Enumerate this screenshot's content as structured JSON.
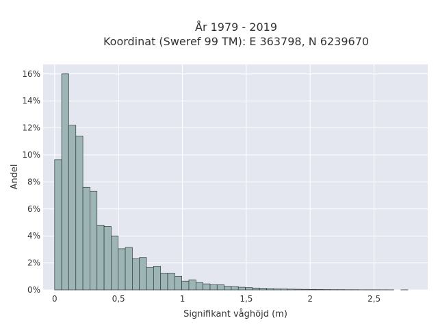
{
  "chart_data": {
    "type": "bar",
    "title_line1": "År 1979 - 2019",
    "title_line2": "Koordinat (Sweref 99 TM): E 363798, N 6239670",
    "xlabel": "Signifikant våghöjd (m)",
    "ylabel": "Andel",
    "xlim": [
      -0.09,
      2.92
    ],
    "ylim": [
      0,
      16.7
    ],
    "x_ticks": [
      {
        "value": 0,
        "label": "0"
      },
      {
        "value": 0.5,
        "label": "0,5"
      },
      {
        "value": 1,
        "label": "1"
      },
      {
        "value": 1.5,
        "label": "1,5"
      },
      {
        "value": 2,
        "label": "2"
      },
      {
        "value": 2.5,
        "label": "2,5"
      }
    ],
    "y_ticks": [
      {
        "value": 0,
        "label": "0%"
      },
      {
        "value": 2,
        "label": "2%"
      },
      {
        "value": 4,
        "label": "4%"
      },
      {
        "value": 6,
        "label": "6%"
      },
      {
        "value": 8,
        "label": "8%"
      },
      {
        "value": 10,
        "label": "10%"
      },
      {
        "value": 12,
        "label": "12%"
      },
      {
        "value": 14,
        "label": "14%"
      },
      {
        "value": 16,
        "label": "16%"
      }
    ],
    "grid": true,
    "bin_width": 0.0553,
    "bins": [
      {
        "x0": 0.0,
        "value": 9.65
      },
      {
        "x0": 0.0553,
        "value": 16.0
      },
      {
        "x0": 0.1106,
        "value": 12.2
      },
      {
        "x0": 0.1659,
        "value": 11.4
      },
      {
        "x0": 0.2212,
        "value": 7.6
      },
      {
        "x0": 0.2765,
        "value": 7.3
      },
      {
        "x0": 0.3318,
        "value": 4.8
      },
      {
        "x0": 0.3871,
        "value": 4.7
      },
      {
        "x0": 0.4424,
        "value": 4.0
      },
      {
        "x0": 0.4977,
        "value": 3.05
      },
      {
        "x0": 0.553,
        "value": 3.15
      },
      {
        "x0": 0.6083,
        "value": 2.3
      },
      {
        "x0": 0.6636,
        "value": 2.4
      },
      {
        "x0": 0.7189,
        "value": 1.65
      },
      {
        "x0": 0.7742,
        "value": 1.75
      },
      {
        "x0": 0.8295,
        "value": 1.25
      },
      {
        "x0": 0.8848,
        "value": 1.25
      },
      {
        "x0": 0.9401,
        "value": 1.0
      },
      {
        "x0": 0.9954,
        "value": 0.65
      },
      {
        "x0": 1.0507,
        "value": 0.75
      },
      {
        "x0": 1.106,
        "value": 0.55
      },
      {
        "x0": 1.1613,
        "value": 0.45
      },
      {
        "x0": 1.2166,
        "value": 0.38
      },
      {
        "x0": 1.2719,
        "value": 0.38
      },
      {
        "x0": 1.3272,
        "value": 0.27
      },
      {
        "x0": 1.3825,
        "value": 0.25
      },
      {
        "x0": 1.4378,
        "value": 0.2
      },
      {
        "x0": 1.4931,
        "value": 0.17
      },
      {
        "x0": 1.5484,
        "value": 0.14
      },
      {
        "x0": 1.6037,
        "value": 0.12
      },
      {
        "x0": 1.659,
        "value": 0.1
      },
      {
        "x0": 1.7143,
        "value": 0.08
      },
      {
        "x0": 1.7696,
        "value": 0.07
      },
      {
        "x0": 1.8249,
        "value": 0.06
      },
      {
        "x0": 1.8802,
        "value": 0.05
      },
      {
        "x0": 1.9355,
        "value": 0.04
      },
      {
        "x0": 1.9908,
        "value": 0.035
      },
      {
        "x0": 2.0461,
        "value": 0.03
      },
      {
        "x0": 2.1014,
        "value": 0.025
      },
      {
        "x0": 2.1567,
        "value": 0.02
      },
      {
        "x0": 2.212,
        "value": 0.02
      },
      {
        "x0": 2.2673,
        "value": 0.015
      },
      {
        "x0": 2.3226,
        "value": 0.015
      },
      {
        "x0": 2.3779,
        "value": 0.01
      },
      {
        "x0": 2.4332,
        "value": 0.01
      },
      {
        "x0": 2.4885,
        "value": 0.01
      },
      {
        "x0": 2.5438,
        "value": 0.008
      },
      {
        "x0": 2.5991,
        "value": 0.006
      },
      {
        "x0": 2.7097,
        "value": 0.005
      }
    ],
    "colors": {
      "bar_fill": "#9db5b4",
      "bar_stroke": "#2f3a3a",
      "plot_bg": "#e5e7f0",
      "grid": "#ffffff",
      "text": "#333333"
    }
  }
}
